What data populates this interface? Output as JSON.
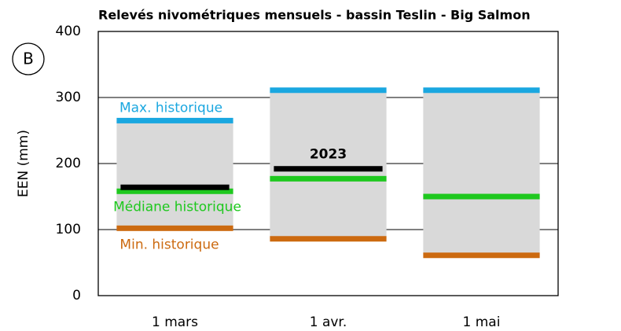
{
  "chart_data": {
    "type": "range_bar",
    "title": "Relevés nivométriques mensuels - bassin Teslin - Big Salmon",
    "panel_label": "B",
    "y_label": "EEN (mm)",
    "categories": [
      "1 mars",
      "1 avr.",
      "1 mai"
    ],
    "range_color": "#d9d9d9",
    "series": [
      {
        "name": "Max. historique",
        "color": "#1aa7e0",
        "values": [
          265,
          311,
          311
        ]
      },
      {
        "name": "Médiane historique",
        "color": "#1ec81e",
        "values": [
          158,
          177,
          150
        ]
      },
      {
        "name": "Min. historique",
        "color": "#cc6a10",
        "values": [
          102,
          86,
          61
        ]
      },
      {
        "name": "2023",
        "color": "#000000",
        "values": [
          164,
          192,
          null
        ]
      }
    ],
    "ylim": [
      0,
      400
    ],
    "yticks": [
      0,
      100,
      200,
      300,
      400
    ],
    "grid": true
  }
}
